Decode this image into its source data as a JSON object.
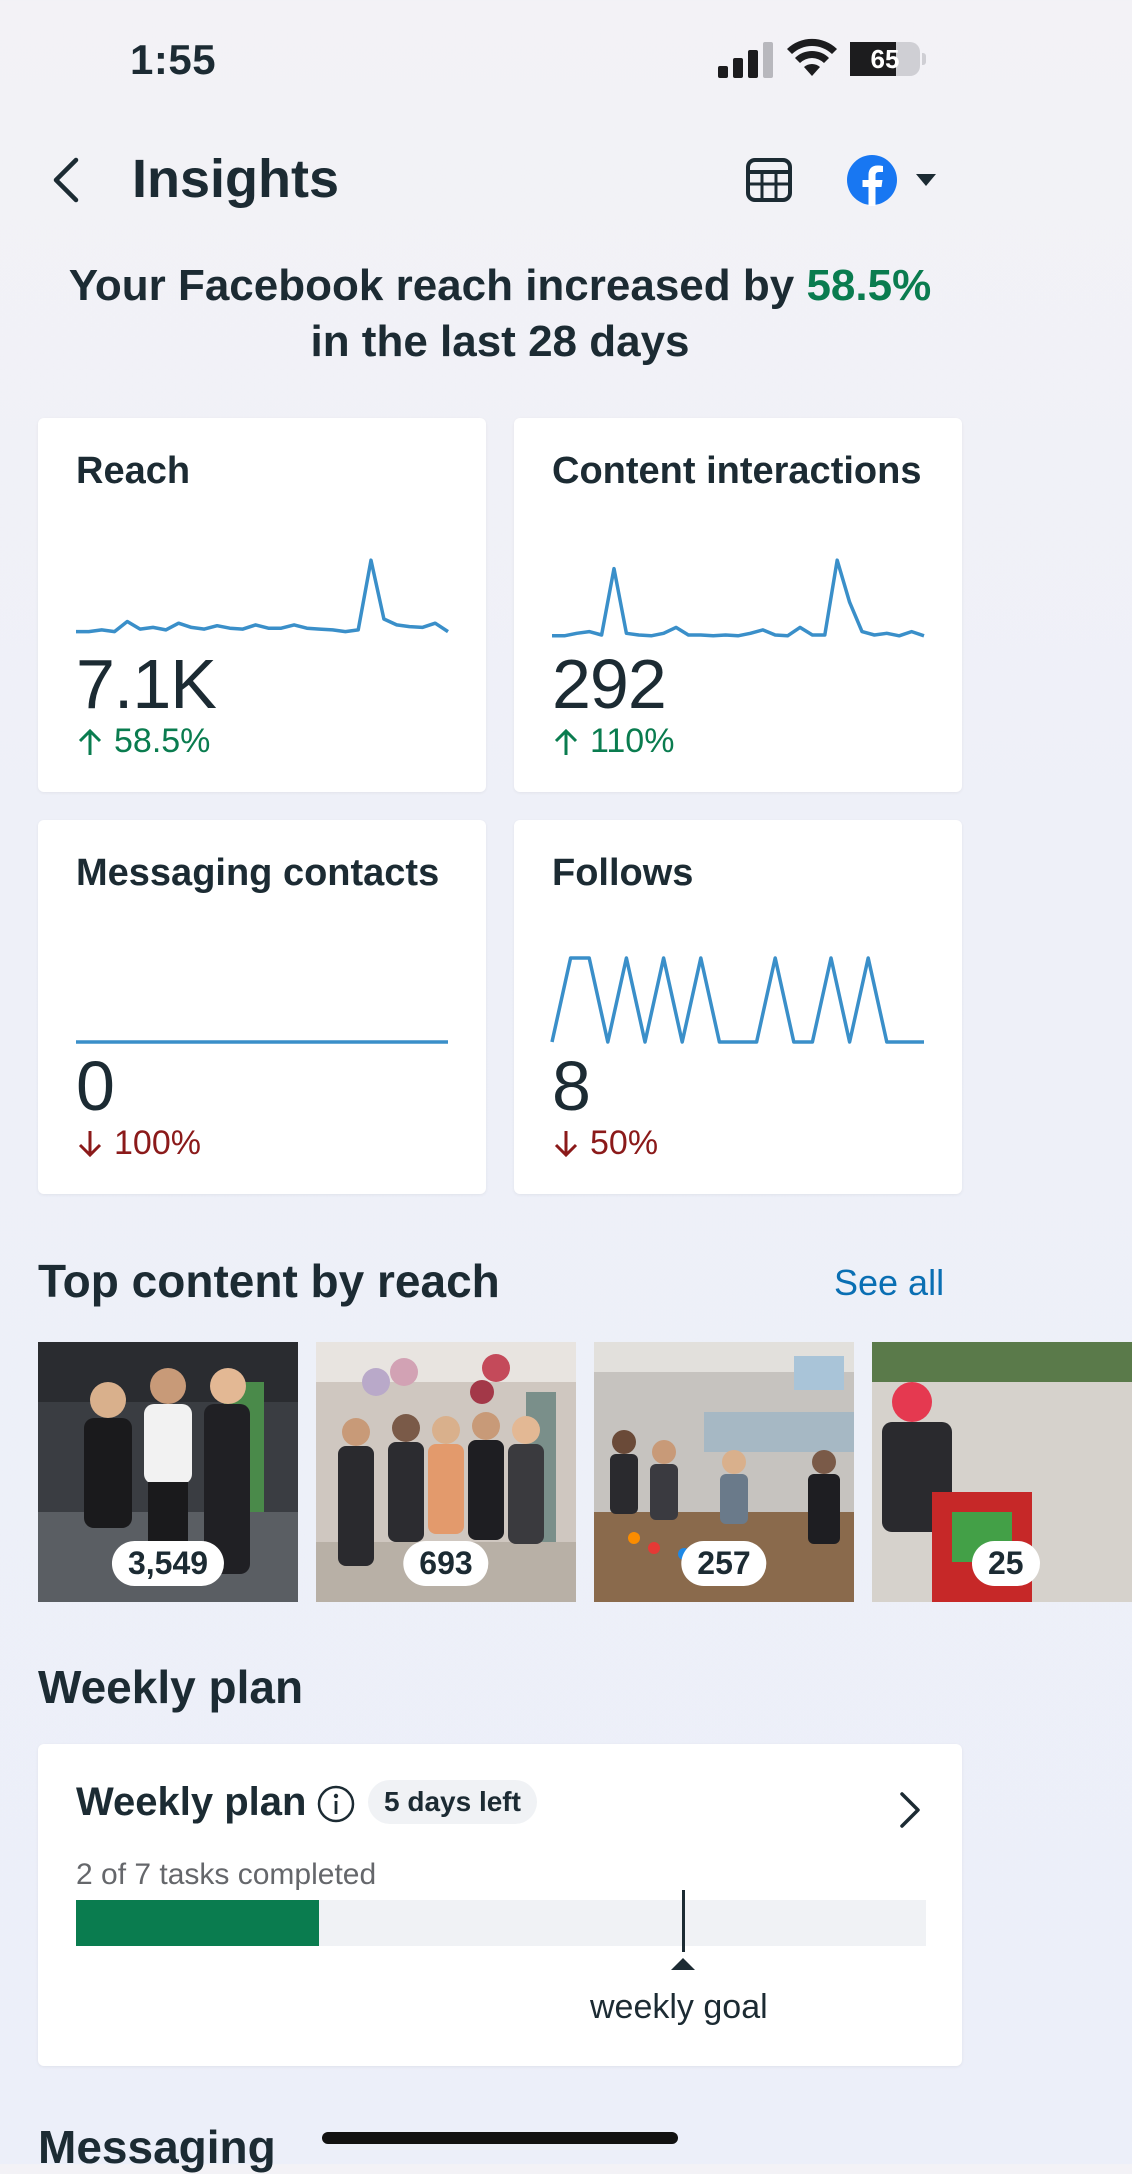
{
  "status_bar": {
    "time": "1:55",
    "battery_level": "65"
  },
  "header": {
    "title": "Insights"
  },
  "headline": {
    "prefix": "Your Facebook reach increased by ",
    "highlight": "58.5%",
    "suffix": "in the last 28 days"
  },
  "metrics": [
    {
      "label": "Reach",
      "value": "7.1K",
      "change": "58.5%",
      "direction": "up",
      "trend": [
        0.1,
        0.1,
        0.12,
        0.1,
        0.22,
        0.13,
        0.15,
        0.12,
        0.2,
        0.15,
        0.13,
        0.17,
        0.14,
        0.13,
        0.18,
        0.14,
        0.14,
        0.18,
        0.14,
        0.13,
        0.12,
        0.1,
        0.12,
        0.95,
        0.25,
        0.18,
        0.16,
        0.15,
        0.2,
        0.1
      ]
    },
    {
      "label": "Content interactions",
      "value": "292",
      "change": "110%",
      "direction": "up",
      "trend": [
        0.05,
        0.05,
        0.08,
        0.1,
        0.06,
        0.85,
        0.08,
        0.06,
        0.05,
        0.08,
        0.15,
        0.06,
        0.06,
        0.05,
        0.06,
        0.05,
        0.08,
        0.12,
        0.06,
        0.05,
        0.15,
        0.06,
        0.06,
        0.95,
        0.45,
        0.1,
        0.06,
        0.08,
        0.05,
        0.1,
        0.05
      ]
    },
    {
      "label": "Messaging contacts",
      "value": "0",
      "change": "100%",
      "direction": "down",
      "trend": [
        0,
        0,
        0,
        0,
        0,
        0,
        0,
        0,
        0,
        0,
        0,
        0,
        0,
        0,
        0,
        0,
        0,
        0,
        0,
        0,
        0,
        0,
        0,
        0,
        0,
        0,
        0,
        0,
        0,
        0
      ]
    },
    {
      "label": "Follows",
      "value": "8",
      "change": "50%",
      "direction": "down",
      "trend": [
        0,
        1,
        1,
        0,
        1,
        0,
        1,
        0,
        1,
        0,
        0,
        0,
        1,
        0,
        0,
        1,
        0,
        1,
        0,
        0,
        0
      ]
    }
  ],
  "top_content": {
    "title": "Top content by reach",
    "see_all": "See all",
    "items": [
      {
        "reach": "3,549"
      },
      {
        "reach": "693"
      },
      {
        "reach": "257"
      },
      {
        "reach": "25"
      }
    ]
  },
  "weekly_plan": {
    "section_title": "Weekly plan",
    "card_title": "Weekly plan",
    "days_left": "5 days left",
    "tasks_text": "2 of 7 tasks completed",
    "completed": 2,
    "total": 7,
    "goal": 5,
    "goal_label": "weekly goal"
  },
  "messaging": {
    "section_title": "Messaging"
  },
  "colors": {
    "accent_green": "#0a7c4f",
    "decline_red": "#8b1a1a",
    "spark_blue": "#3a8fc9",
    "link_blue": "#0a6fb3",
    "facebook_blue": "#1877f2"
  }
}
